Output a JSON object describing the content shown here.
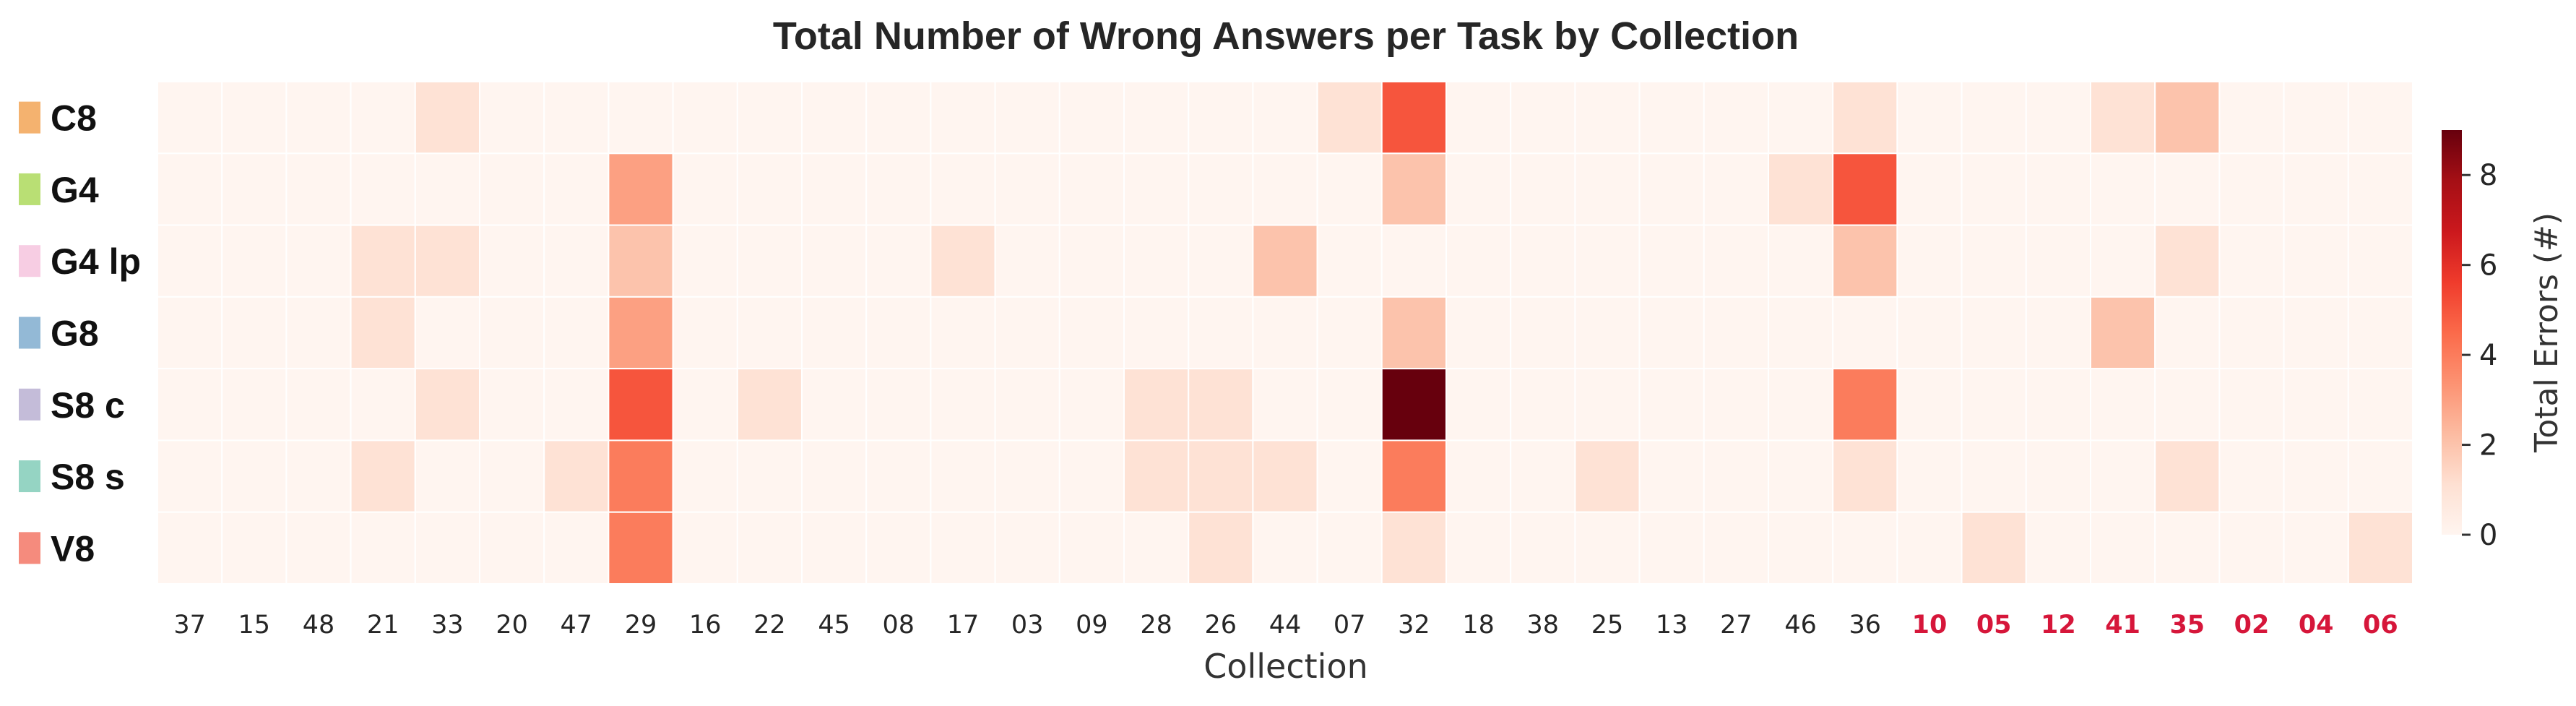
{
  "chart_data": {
    "type": "heatmap",
    "title": "Total Number of Wrong Answers per Task by Collection",
    "xlabel": "Collection",
    "colorbar_label": "Total Errors (#)",
    "colorbar_ticks": [
      "0",
      "2",
      "4",
      "6",
      "8"
    ],
    "color_range": [
      0,
      9
    ],
    "colormap": "Reds",
    "highlight_color": "#d6163a",
    "rows": [
      {
        "label": "C8",
        "color": "#f4b26f"
      },
      {
        "label": "G4",
        "color": "#b9df74"
      },
      {
        "label": "G4 lp",
        "color": "#f7cde3"
      },
      {
        "label": "G8",
        "color": "#93b9d6"
      },
      {
        "label": "S8 c",
        "color": "#c4bcd9"
      },
      {
        "label": "S8 s",
        "color": "#95d4c3"
      },
      {
        "label": "V8",
        "color": "#f58b7d"
      }
    ],
    "columns": [
      {
        "label": "37",
        "highlight": false
      },
      {
        "label": "15",
        "highlight": false
      },
      {
        "label": "48",
        "highlight": false
      },
      {
        "label": "21",
        "highlight": false
      },
      {
        "label": "33",
        "highlight": false
      },
      {
        "label": "20",
        "highlight": false
      },
      {
        "label": "47",
        "highlight": false
      },
      {
        "label": "29",
        "highlight": false
      },
      {
        "label": "16",
        "highlight": false
      },
      {
        "label": "22",
        "highlight": false
      },
      {
        "label": "45",
        "highlight": false
      },
      {
        "label": "08",
        "highlight": false
      },
      {
        "label": "17",
        "highlight": false
      },
      {
        "label": "03",
        "highlight": false
      },
      {
        "label": "09",
        "highlight": false
      },
      {
        "label": "28",
        "highlight": false
      },
      {
        "label": "26",
        "highlight": false
      },
      {
        "label": "44",
        "highlight": false
      },
      {
        "label": "07",
        "highlight": false
      },
      {
        "label": "32",
        "highlight": false
      },
      {
        "label": "18",
        "highlight": false
      },
      {
        "label": "38",
        "highlight": false
      },
      {
        "label": "25",
        "highlight": false
      },
      {
        "label": "13",
        "highlight": false
      },
      {
        "label": "27",
        "highlight": false
      },
      {
        "label": "46",
        "highlight": false
      },
      {
        "label": "36",
        "highlight": false
      },
      {
        "label": "10",
        "highlight": true
      },
      {
        "label": "05",
        "highlight": true
      },
      {
        "label": "12",
        "highlight": true
      },
      {
        "label": "41",
        "highlight": true
      },
      {
        "label": "35",
        "highlight": true
      },
      {
        "label": "02",
        "highlight": true
      },
      {
        "label": "04",
        "highlight": true
      },
      {
        "label": "06",
        "highlight": true
      }
    ],
    "values": [
      [
        0,
        0,
        0,
        0,
        1,
        0,
        0,
        0,
        0,
        0,
        0,
        0,
        0,
        0,
        0,
        0,
        0,
        0,
        1,
        5,
        0,
        0,
        0,
        0,
        0,
        0,
        1,
        0,
        0,
        0,
        1,
        2,
        0,
        0,
        0
      ],
      [
        0,
        0,
        0,
        0,
        0,
        0,
        0,
        3,
        0,
        0,
        0,
        0,
        0,
        0,
        0,
        0,
        0,
        0,
        0,
        2,
        0,
        0,
        0,
        0,
        0,
        1,
        5,
        0,
        0,
        0,
        0,
        0,
        0,
        0,
        0
      ],
      [
        0,
        0,
        0,
        1,
        1,
        0,
        0,
        2,
        0,
        0,
        0,
        0,
        1,
        0,
        0,
        0,
        0,
        2,
        0,
        0,
        0,
        0,
        0,
        0,
        0,
        0,
        2,
        0,
        0,
        0,
        0,
        1,
        0,
        0,
        0
      ],
      [
        0,
        0,
        0,
        1,
        0,
        0,
        0,
        3,
        0,
        0,
        0,
        0,
        0,
        0,
        0,
        0,
        0,
        0,
        0,
        2,
        0,
        0,
        0,
        0,
        0,
        0,
        0,
        0,
        0,
        0,
        2,
        0,
        0,
        0,
        0
      ],
      [
        0,
        0,
        0,
        0,
        1,
        0,
        0,
        5,
        0,
        1,
        0,
        0,
        0,
        0,
        0,
        1,
        1,
        0,
        0,
        9,
        0,
        0,
        0,
        0,
        0,
        0,
        4,
        0,
        0,
        0,
        0,
        0,
        0,
        0,
        0
      ],
      [
        0,
        0,
        0,
        1,
        0,
        0,
        1,
        4,
        0,
        0,
        0,
        0,
        0,
        0,
        0,
        1,
        1,
        1,
        0,
        4,
        0,
        0,
        1,
        0,
        0,
        0,
        1,
        0,
        0,
        0,
        0,
        1,
        0,
        0,
        0
      ],
      [
        0,
        0,
        0,
        0,
        0,
        0,
        0,
        4,
        0,
        0,
        0,
        0,
        0,
        0,
        0,
        0,
        1,
        0,
        0,
        1,
        0,
        0,
        0,
        0,
        0,
        0,
        0,
        0,
        1,
        0,
        0,
        0,
        0,
        0,
        1
      ]
    ]
  }
}
